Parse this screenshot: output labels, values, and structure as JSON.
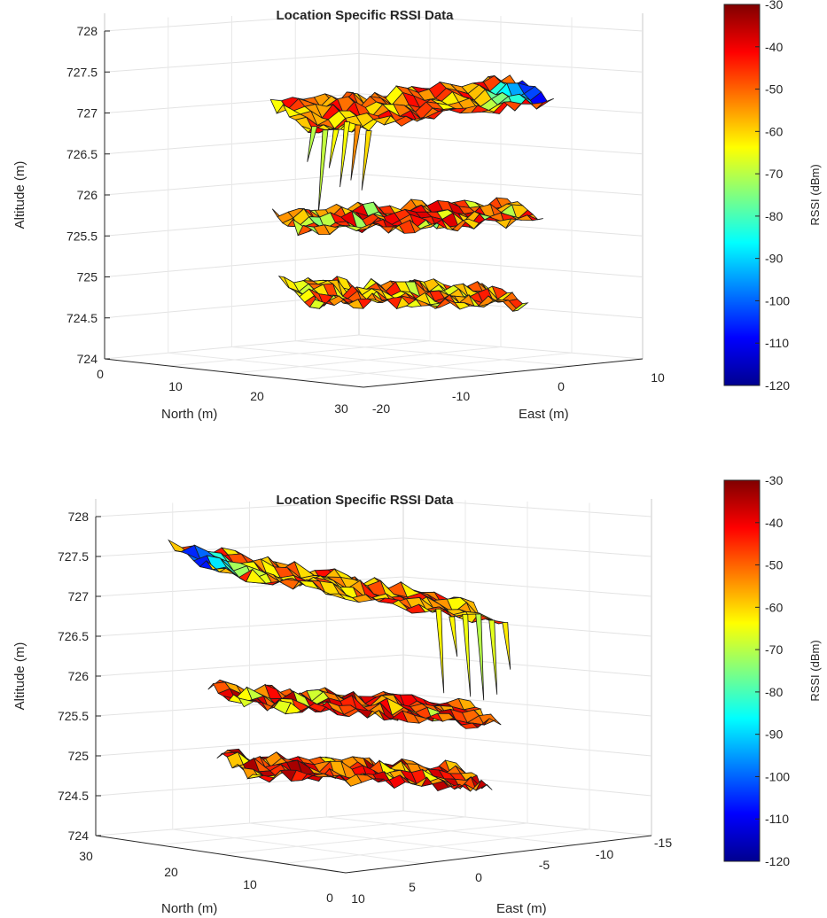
{
  "chart_data": [
    {
      "type": "surface3d",
      "title": "Location Specific RSSI Data",
      "zlabel": "Altitude (m)",
      "xlabel": "North (m)",
      "ylabel": "East (m)",
      "z_ticks": [
        "728",
        "727.5",
        "727",
        "726.5",
        "726",
        "725.5",
        "725",
        "724.5",
        "724"
      ],
      "north_ticks": [
        "0",
        "10",
        "20",
        "30"
      ],
      "east_ticks": [
        "-20",
        "-10",
        "0",
        "10"
      ],
      "zlim": [
        724,
        728
      ],
      "xlim": [
        0,
        30
      ],
      "ylim": [
        -20,
        10
      ],
      "colorbar": {
        "label": "RSSI (dBm)",
        "ticks": [
          "-30",
          "-40",
          "-50",
          "-60",
          "-70",
          "-80",
          "-90",
          "-100",
          "-110",
          "-120"
        ],
        "range": [
          -120,
          -30
        ],
        "colormap": "jet"
      },
      "series": [
        {
          "altitude": 727.3,
          "typical_rssi": -52,
          "min_rssi": -110
        },
        {
          "altitude": 725.8,
          "typical_rssi": -48,
          "min_rssi": -75
        },
        {
          "altitude": 724.8,
          "typical_rssi": -55,
          "min_rssi": -70
        }
      ]
    },
    {
      "type": "surface3d",
      "title": "Location Specific RSSI Data",
      "zlabel": "Altitude (m)",
      "xlabel": "North (m)",
      "ylabel": "East (m)",
      "z_ticks": [
        "728",
        "727.5",
        "727",
        "726.5",
        "726",
        "725.5",
        "725",
        "724.5",
        "724"
      ],
      "north_ticks": [
        "30",
        "20",
        "10",
        "0"
      ],
      "east_ticks": [
        "10",
        "5",
        "0",
        "-5",
        "-10",
        "-15"
      ],
      "zlim": [
        724,
        728
      ],
      "xlim": [
        0,
        30
      ],
      "ylim": [
        -15,
        10
      ],
      "colorbar": {
        "label": "RSSI (dBm)",
        "ticks": [
          "-30",
          "-40",
          "-50",
          "-60",
          "-70",
          "-80",
          "-90",
          "-100",
          "-110",
          "-120"
        ],
        "range": [
          -120,
          -30
        ],
        "colormap": "jet"
      },
      "series": [
        {
          "altitude": 727.2,
          "typical_rssi": -52,
          "min_rssi": -110
        },
        {
          "altitude": 725.7,
          "typical_rssi": -45,
          "min_rssi": -70
        },
        {
          "altitude": 724.8,
          "typical_rssi": -45,
          "min_rssi": -65
        }
      ]
    }
  ]
}
